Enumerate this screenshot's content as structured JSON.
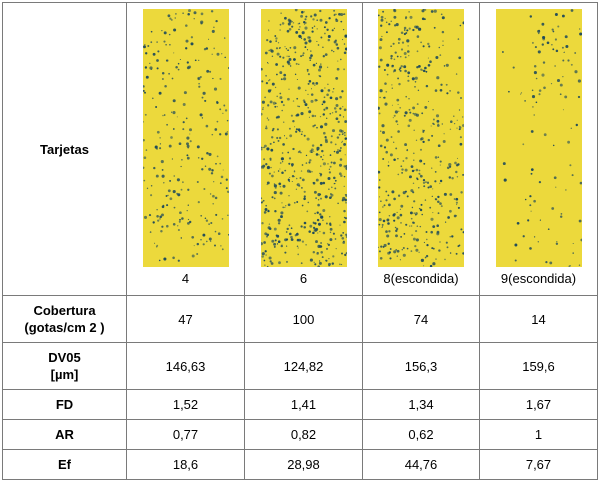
{
  "table": {
    "row_headers": {
      "cards": "Tarjetas",
      "cobertura_line1": "Cobertura",
      "cobertura_line2": "(gotas/cm 2 )",
      "dv05_line1": "DV05",
      "dv05_line2": "[µm]",
      "fd": "FD",
      "ar": "AR",
      "ef": "Ef"
    },
    "columns": [
      {
        "card_label": "4",
        "cobertura": "47",
        "dv05": "146,63",
        "fd": "1,52",
        "ar": "0,77",
        "ef": "18,6"
      },
      {
        "card_label": "6",
        "cobertura": "100",
        "dv05": "124,82",
        "fd": "1,41",
        "ar": "0,82",
        "ef": "28,98"
      },
      {
        "card_label": "8(escondida)",
        "cobertura": "74",
        "dv05": "156,3",
        "fd": "1,34",
        "ar": "0,62",
        "ef": "44,76"
      },
      {
        "card_label": "9(escondida)",
        "cobertura": "14",
        "dv05": "159,6",
        "fd": "1,67",
        "ar": "1",
        "ef": "7,67"
      }
    ]
  },
  "colors": {
    "card_yellow": "#ecd93c",
    "droplet": "#1f4a5a",
    "border": "#7a7a7a"
  },
  "card_icons": [
    "water-sensitive-card",
    "water-sensitive-card",
    "water-sensitive-card",
    "water-sensitive-card"
  ]
}
